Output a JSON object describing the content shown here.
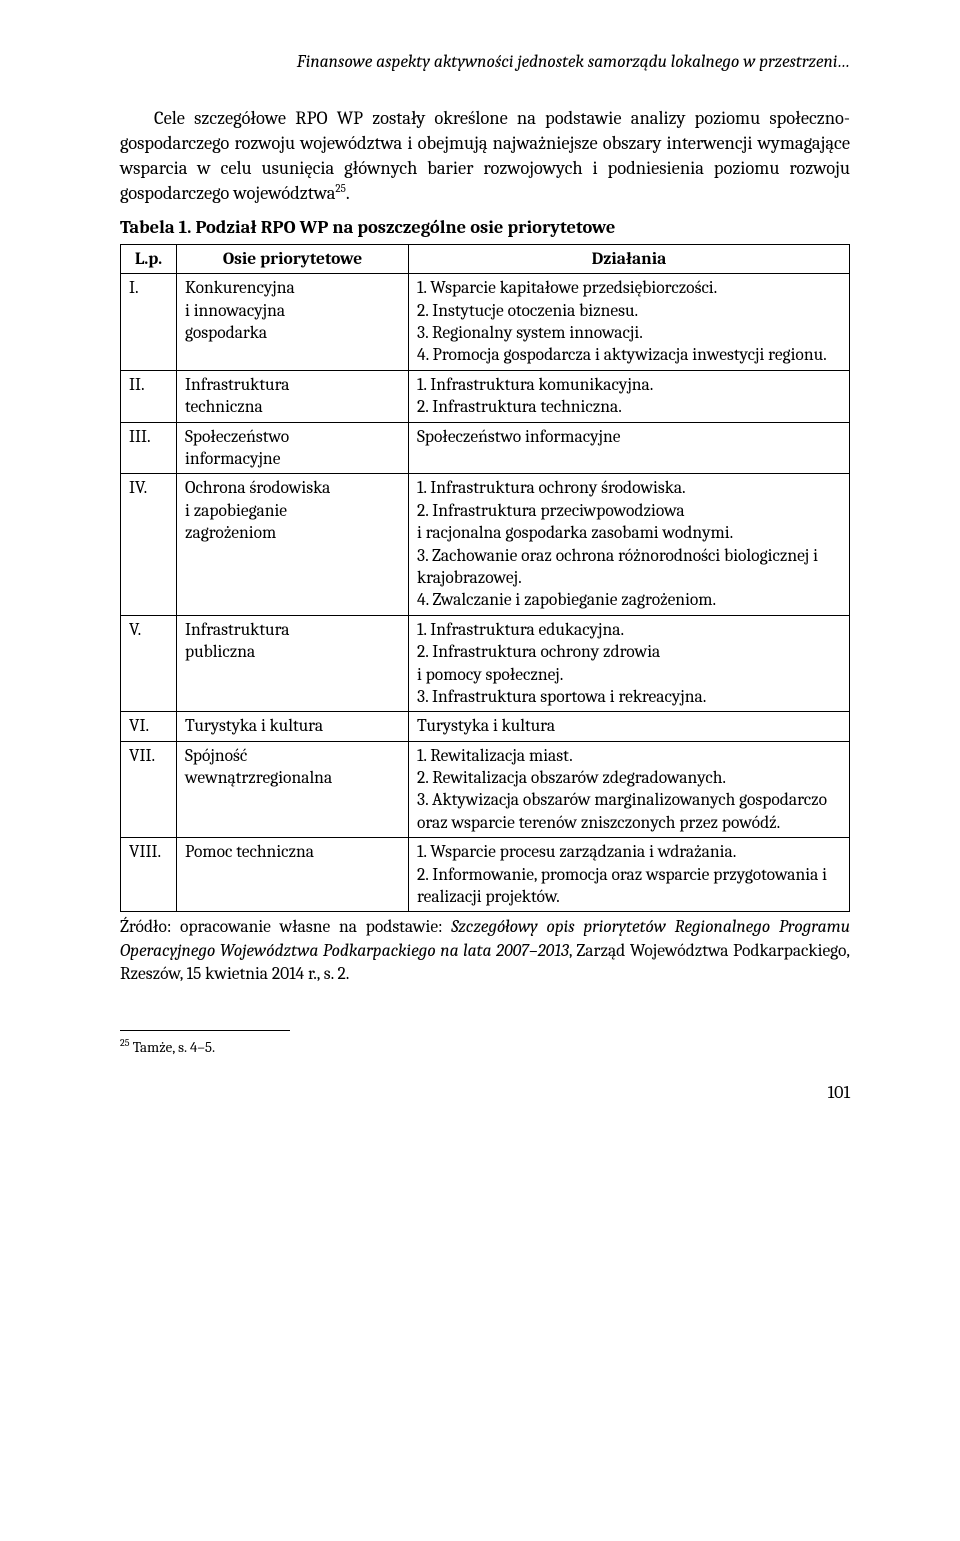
{
  "running_head": "Finansowe aspekty aktywności jednostek samorządu lokalnego w przestrzeni…",
  "paragraph_pre": "Cele szczegółowe RPO WP zostały określone na podstawie analizy poziomu społeczno-gospodarczego rozwoju województwa i obejmują najważniejsze obszary interwencji wymagające wsparcia w celu usunięcia głównych barier rozwojowych i podniesienia poziomu rozwoju gospodarczego województwa",
  "paragraph_sup": "25",
  "paragraph_post": ".",
  "table_caption": "Tabela 1. Podział RPO WP na poszczególne osie priorytetowe",
  "header": {
    "lp": "L.p.",
    "osie": "Osie priorytetowe",
    "dzialania": "Działania"
  },
  "rows": [
    {
      "lp": "I.",
      "osie": "Konkurencyjna\ni innowacyjna\ngospodarka",
      "dz": "1. Wsparcie kapitałowe przedsiębiorczości.\n2. Instytucje otoczenia biznesu.\n3. Regionalny system innowacji.\n4. Promocja gospodarcza i aktywizacja inwestycji regionu."
    },
    {
      "lp": "II.",
      "osie": "Infrastruktura\ntechniczna",
      "dz": "1. Infrastruktura komunikacyjna.\n2. Infrastruktura techniczna."
    },
    {
      "lp": "III.",
      "osie": "Społeczeństwo\ninformacyjne",
      "dz": "Społeczeństwo informacyjne"
    },
    {
      "lp": "IV.",
      "osie": "Ochrona środowiska\ni zapobieganie\nzagrożeniom",
      "dz": "1. Infrastruktura ochrony środowiska.\n2. Infrastruktura przeciwpowodziowa\ni racjonalna gospodarka zasobami wodnymi.\n3. Zachowanie oraz ochrona różnorodności biologicznej i krajobrazowej.\n4. Zwalczanie i zapobieganie zagrożeniom."
    },
    {
      "lp": "V.",
      "osie": "Infrastruktura\npubliczna",
      "dz": "1. Infrastruktura edukacyjna.\n2. Infrastruktura ochrony zdrowia\ni pomocy społecznej.\n3. Infrastruktura sportowa i rekreacyjna."
    },
    {
      "lp": "VI.",
      "osie": "Turystyka i kultura",
      "dz": "Turystyka i kultura"
    },
    {
      "lp": "VII.",
      "osie": "Spójność\nwewnątrzregionalna",
      "dz": "1. Rewitalizacja miast.\n2. Rewitalizacja obszarów zdegradowanych.\n3. Aktywizacja obszarów marginalizowanych gospodarczo oraz wsparcie terenów zniszczonych przez powódź."
    },
    {
      "lp": "VIII.",
      "osie": "Pomoc techniczna",
      "dz": "1. Wsparcie procesu zarządzania i wdrażania.\n2. Informowanie, promocja oraz wsparcie przygotowania i realizacji projektów."
    }
  ],
  "source_pre": "Źródło: opracowanie własne na podstawie: ",
  "source_em": "Szczegółowy opis priorytetów Regionalnego Programu Operacyjnego Województwa Podkarpackiego na lata 2007–2013",
  "source_post": ", Zarząd Województwa Podkarpackiego, Rzeszów, 15 kwietnia 2014 r., s. 2.",
  "footnote_num": "25",
  "footnote_text": " Tamże, s. 4–5.",
  "page_number": "101"
}
